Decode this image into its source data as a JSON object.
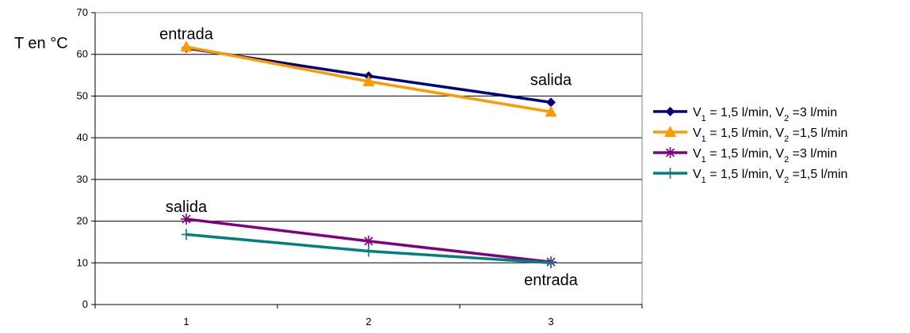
{
  "chart_data": {
    "type": "line",
    "title": "",
    "xlabel": "",
    "ylabel": "T en °C",
    "ylim": [
      0,
      70
    ],
    "yticks": [
      0,
      10,
      20,
      30,
      40,
      50,
      60,
      70
    ],
    "categories": [
      "1",
      "2",
      "3"
    ],
    "grid": true,
    "legend_position": "right",
    "series": [
      {
        "name": "V1 = 1,5 l/min,  V2 =3 l/min",
        "legend": {
          "a": "V",
          "a_sub": "1",
          "b": " = 1,5 l/min,  V",
          "b_sub": "2",
          "c": " =3 l/min"
        },
        "values": [
          61.5,
          54.8,
          48.5
        ],
        "color": "#000080",
        "marker": "diamond"
      },
      {
        "name": "V1 = 1,5 l/min,  V2 =1,5 l/min",
        "legend": {
          "a": "V",
          "a_sub": "1",
          "b": " = 1,5 l/min,  V",
          "b_sub": "2",
          "c": " =1,5 l/min"
        },
        "values": [
          61.8,
          53.5,
          46.2
        ],
        "color": "#FF9900",
        "marker": "triangle"
      },
      {
        "name": "V1 = 1,5 l/min,  V2 =3 l/min",
        "legend": {
          "a": "V",
          "a_sub": "1",
          "b": " = 1,5 l/min,  V",
          "b_sub": "2",
          "c": " =3 l/min"
        },
        "values": [
          20.5,
          15.2,
          10.2
        ],
        "color": "#800080",
        "marker": "asterisk"
      },
      {
        "name": "V1 = 1,5 l/min,  V2 =1,5 l/min",
        "legend": {
          "a": "V",
          "a_sub": "1",
          "b": " = 1,5 l/min,  V",
          "b_sub": "2",
          "c": " =1,5 l/min"
        },
        "values": [
          16.8,
          12.8,
          10.0
        ],
        "color": "#008080",
        "marker": "plus"
      }
    ],
    "annotations": [
      {
        "text": "entrada",
        "x": 1,
        "y": 65
      },
      {
        "text": "salida",
        "x": 3,
        "y": 54
      },
      {
        "text": "salida",
        "x": 1,
        "y": 23.5
      },
      {
        "text": "entrada",
        "x": 3,
        "y": 6
      }
    ]
  }
}
